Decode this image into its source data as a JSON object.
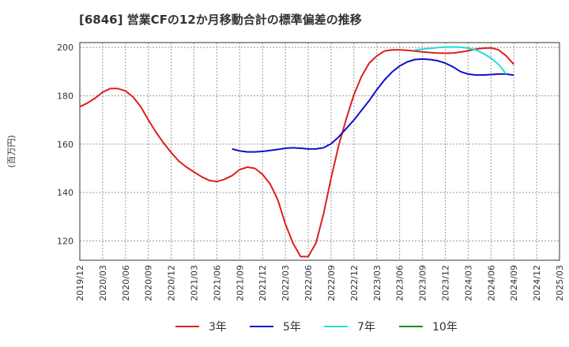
{
  "chart_data": {
    "type": "line",
    "title": "[6846]  営業CFの12か月移動合計の標準偏差の推移",
    "ylabel": "(百万円)",
    "xlabel": "",
    "ylim": [
      112,
      202
    ],
    "yticks": [
      120,
      140,
      160,
      180,
      200
    ],
    "x_tick_labels": [
      "2019/12",
      "2020/03",
      "2020/06",
      "2020/09",
      "2020/12",
      "2021/03",
      "2021/06",
      "2021/09",
      "2021/12",
      "2022/03",
      "2022/06",
      "2022/09",
      "2022/12",
      "2023/03",
      "2023/06",
      "2023/09",
      "2023/12",
      "2024/03",
      "2024/06",
      "2024/09",
      "2024/12",
      "2025/03"
    ],
    "x_months": [
      "2019/12",
      "2020/01",
      "2020/02",
      "2020/03",
      "2020/04",
      "2020/05",
      "2020/06",
      "2020/07",
      "2020/08",
      "2020/09",
      "2020/10",
      "2020/11",
      "2020/12",
      "2021/01",
      "2021/02",
      "2021/03",
      "2021/04",
      "2021/05",
      "2021/06",
      "2021/07",
      "2021/08",
      "2021/09",
      "2021/10",
      "2021/11",
      "2021/12",
      "2022/01",
      "2022/02",
      "2022/03",
      "2022/04",
      "2022/05",
      "2022/06",
      "2022/07",
      "2022/08",
      "2022/09",
      "2022/10",
      "2022/11",
      "2022/12",
      "2023/01",
      "2023/02",
      "2023/03",
      "2023/04",
      "2023/05",
      "2023/06",
      "2023/07",
      "2023/08",
      "2023/09",
      "2023/10",
      "2023/11",
      "2023/12",
      "2024/01",
      "2024/02",
      "2024/03",
      "2024/04",
      "2024/05",
      "2024/06",
      "2024/07",
      "2024/08",
      "2024/09"
    ],
    "grid": true,
    "legend_position": "bottom",
    "series": [
      {
        "name": "3年",
        "color": "#dd1f1f",
        "start": "2019/12",
        "values": [
          175.5,
          177,
          179,
          181.5,
          183,
          183,
          182,
          179.5,
          175.5,
          170,
          165,
          160.5,
          156.5,
          153,
          150.5,
          148.5,
          146.5,
          145,
          144.5,
          145.5,
          147,
          149.5,
          150.5,
          150,
          147.5,
          143.5,
          137,
          127,
          119,
          113.5,
          113.5,
          119,
          131,
          146,
          159.5,
          170.5,
          180.5,
          188,
          193.5,
          196.5,
          198.5,
          199,
          199,
          198.8,
          198.5,
          198.2,
          197.9,
          197.7,
          197.6,
          197.7,
          198.1,
          198.6,
          199.3,
          199.7,
          199.8,
          199,
          196.5,
          193
        ]
      },
      {
        "name": "5年",
        "color": "#1010cc",
        "start": "2021/08",
        "values": [
          158,
          157.2,
          156.8,
          156.8,
          157,
          157.4,
          157.8,
          158.3,
          158.5,
          158.3,
          158,
          158,
          158.5,
          160.2,
          163,
          166.5,
          170,
          174,
          178,
          182.5,
          186.5,
          189.8,
          192.3,
          194,
          195,
          195.2,
          195,
          194.5,
          193.5,
          192,
          190,
          189,
          188.6,
          188.6,
          188.8,
          189,
          189,
          188.5
        ]
      },
      {
        "name": "7年",
        "color": "#22dddd",
        "start": "2023/08",
        "values": [
          199,
          199.3,
          199.6,
          199.9,
          200.1,
          200.2,
          200.1,
          199.7,
          199,
          197.5,
          195.5,
          193,
          189
        ]
      },
      {
        "name": "10年",
        "color": "#228822",
        "start": "2024/12",
        "values": []
      }
    ]
  }
}
